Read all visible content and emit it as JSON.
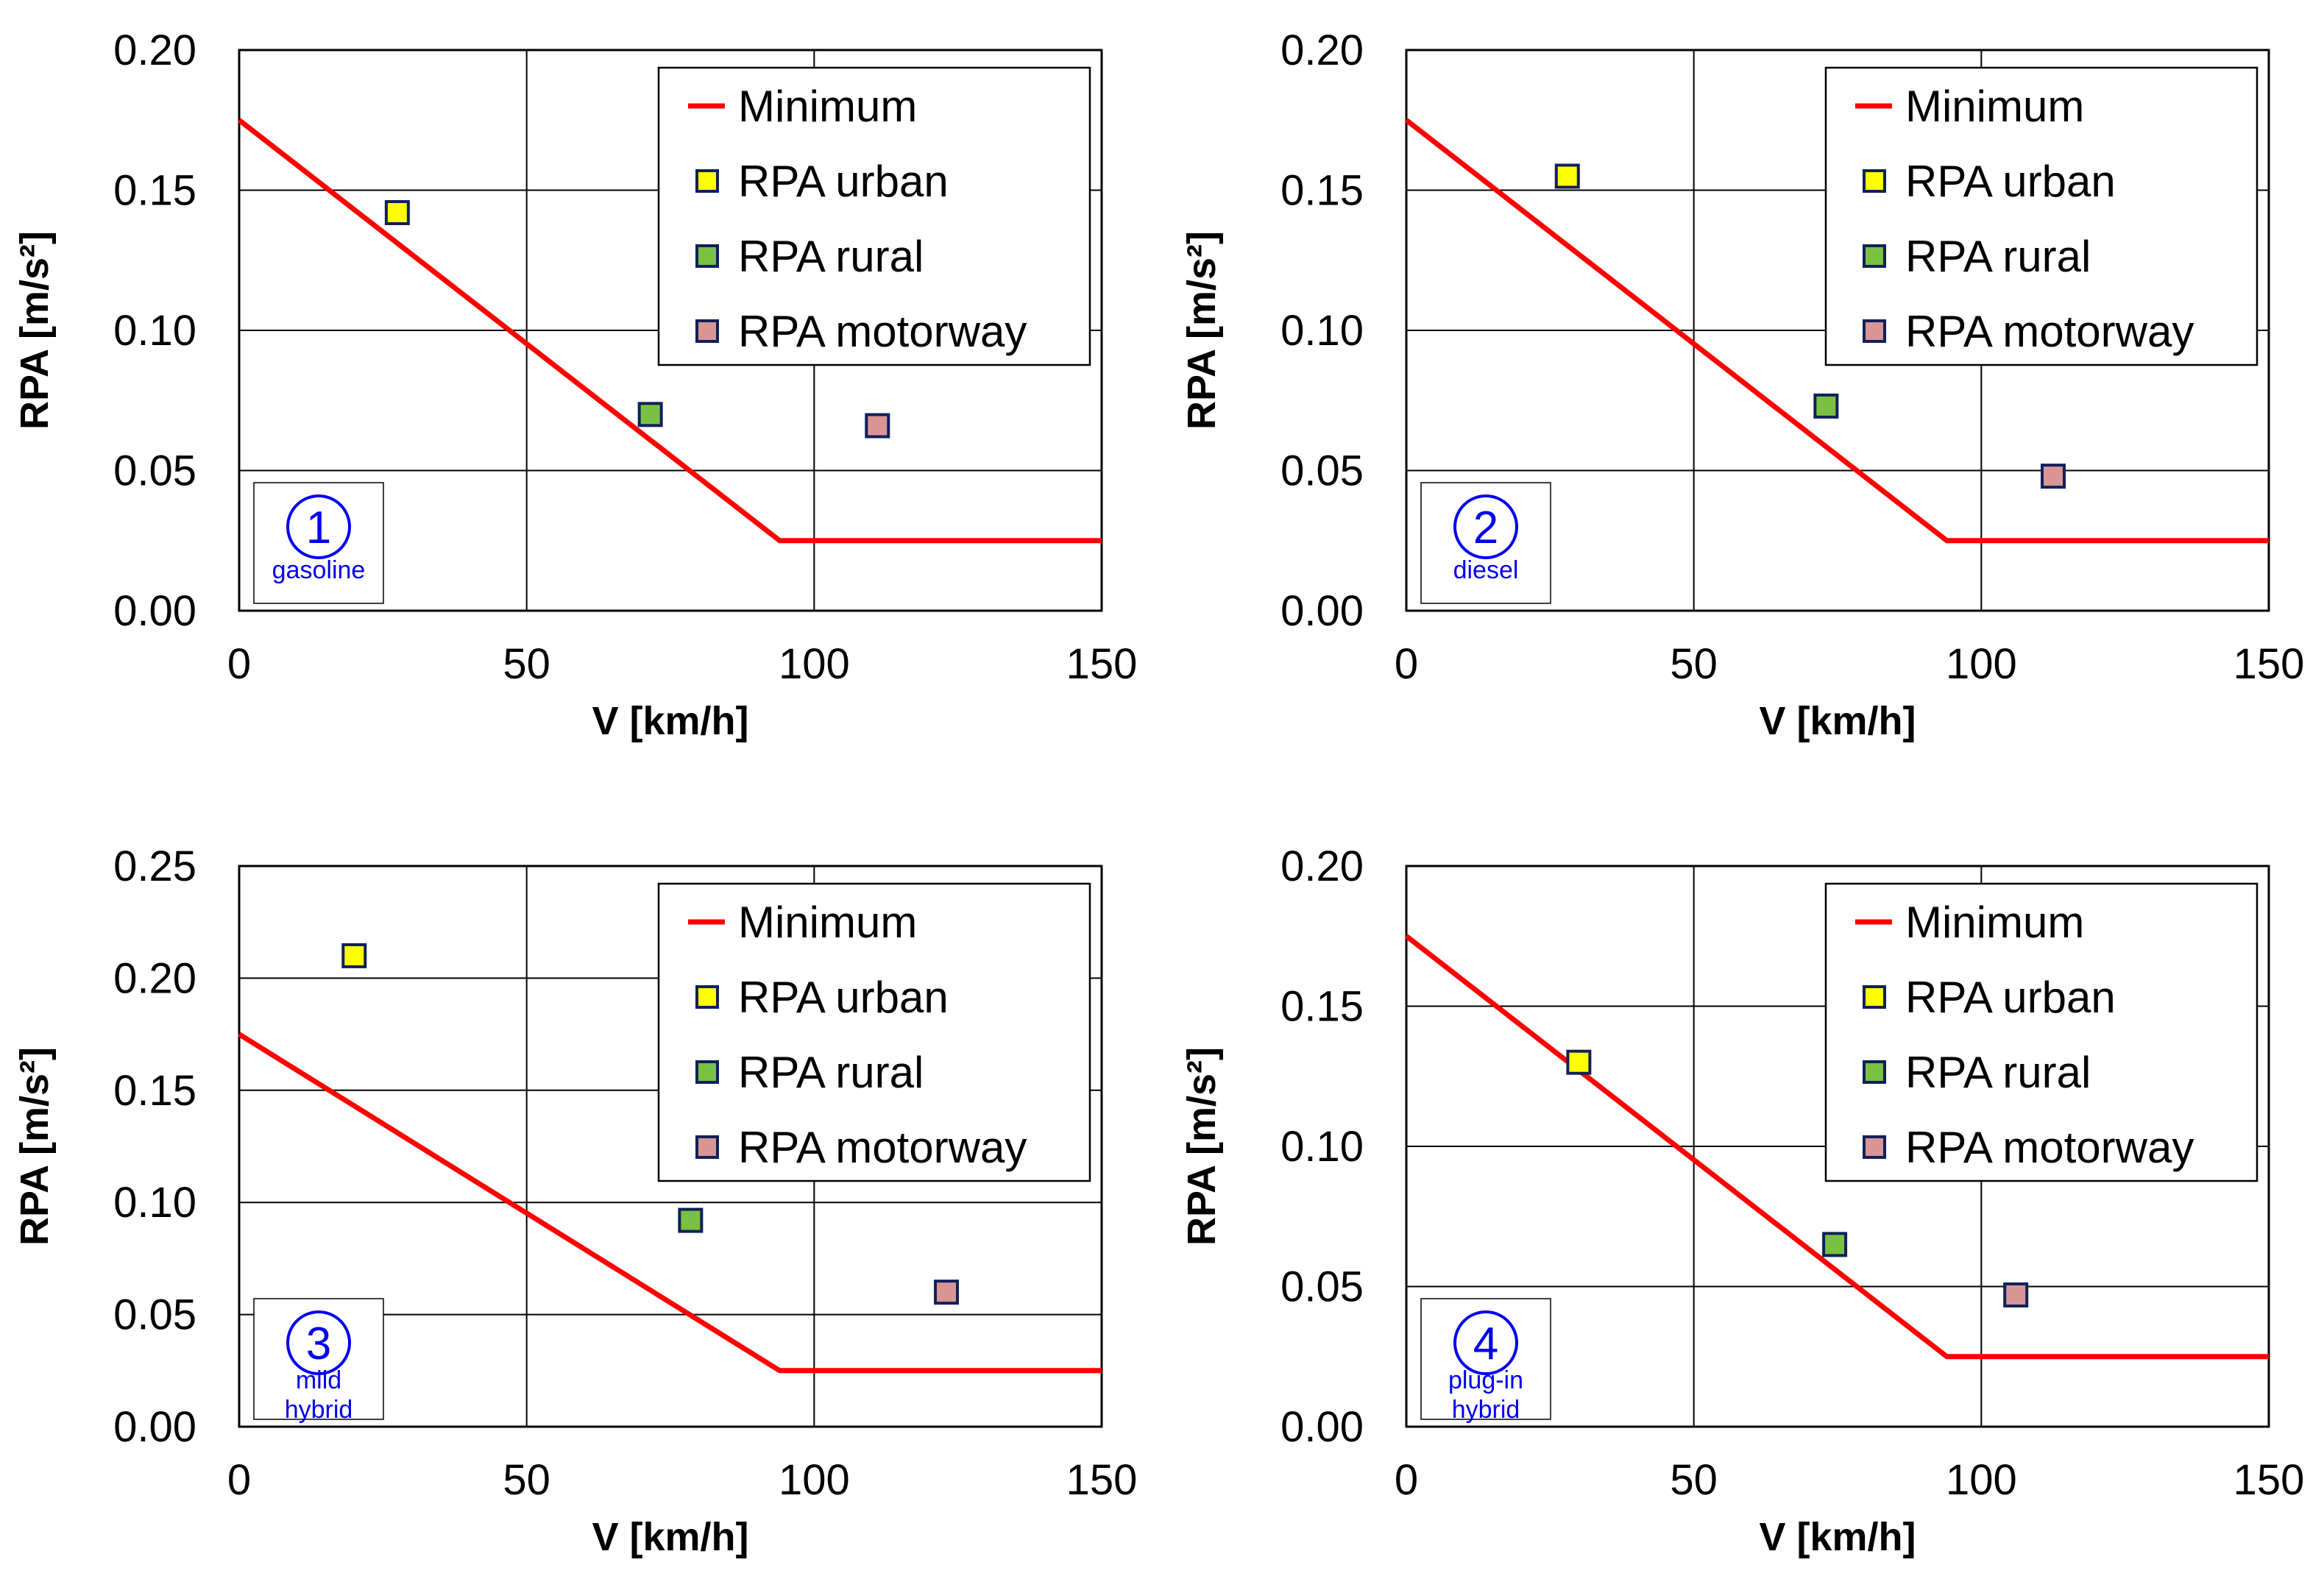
{
  "chart_data": [
    {
      "type": "scatter",
      "panel_number": "①",
      "panel_label": [
        "gasoline"
      ],
      "xlabel": "V [km/h]",
      "ylabel": "RPA [m/s²]",
      "xlim": [
        0,
        150
      ],
      "ylim": [
        0,
        0.2
      ],
      "xticks": [
        0,
        50,
        100,
        150
      ],
      "xtick_labels": [
        "0",
        "50",
        "100",
        "150"
      ],
      "yticks": [
        0,
        0.05,
        0.1,
        0.15,
        0.2
      ],
      "ytick_labels": [
        "0.00",
        "0.05",
        "0.10",
        "0.15",
        "0.20"
      ],
      "grid": true,
      "legend_position": "top-right",
      "minimum_line": {
        "name": "Minimum",
        "color": "#ff0000",
        "x": [
          0,
          94,
          150
        ],
        "y": [
          0.175,
          0.025,
          0.025
        ]
      },
      "series": [
        {
          "name": "RPA urban",
          "color": "#ffff00",
          "x": [
            27.5
          ],
          "y": [
            0.142
          ]
        },
        {
          "name": "RPA rural",
          "color": "#7ac143",
          "x": [
            71.5
          ],
          "y": [
            0.07
          ]
        },
        {
          "name": "RPA motorway",
          "color": "#d99594",
          "x": [
            111
          ],
          "y": [
            0.066
          ]
        }
      ]
    },
    {
      "type": "scatter",
      "panel_number": "②",
      "panel_label": [
        "diesel"
      ],
      "xlabel": "V [km/h]",
      "ylabel": "RPA [m/s²]",
      "xlim": [
        0,
        150
      ],
      "ylim": [
        0,
        0.2
      ],
      "xticks": [
        0,
        50,
        100,
        150
      ],
      "xtick_labels": [
        "0",
        "50",
        "100",
        "150"
      ],
      "yticks": [
        0,
        0.05,
        0.1,
        0.15,
        0.2
      ],
      "ytick_labels": [
        "0.00",
        "0.05",
        "0.10",
        "0.15",
        "0.20"
      ],
      "grid": true,
      "legend_position": "top-right",
      "minimum_line": {
        "name": "Minimum",
        "color": "#ff0000",
        "x": [
          0,
          94,
          150
        ],
        "y": [
          0.175,
          0.025,
          0.025
        ]
      },
      "series": [
        {
          "name": "RPA urban",
          "color": "#ffff00",
          "x": [
            28
          ],
          "y": [
            0.155
          ]
        },
        {
          "name": "RPA rural",
          "color": "#7ac143",
          "x": [
            73
          ],
          "y": [
            0.073
          ]
        },
        {
          "name": "RPA motorway",
          "color": "#d99594",
          "x": [
            112.5
          ],
          "y": [
            0.048
          ]
        }
      ]
    },
    {
      "type": "scatter",
      "panel_number": "③",
      "panel_label": [
        "mild",
        "hybrid"
      ],
      "xlabel": "V [km/h]",
      "ylabel": "RPA [m/s²]",
      "xlim": [
        0,
        150
      ],
      "ylim": [
        0,
        0.25
      ],
      "xticks": [
        0,
        50,
        100,
        150
      ],
      "xtick_labels": [
        "0",
        "50",
        "100",
        "150"
      ],
      "yticks": [
        0,
        0.05,
        0.1,
        0.15,
        0.2,
        0.25
      ],
      "ytick_labels": [
        "0.00",
        "0.05",
        "0.10",
        "0.15",
        "0.20",
        "0.25"
      ],
      "grid": true,
      "legend_position": "top-right",
      "minimum_line": {
        "name": "Minimum",
        "color": "#ff0000",
        "x": [
          0,
          94,
          150
        ],
        "y": [
          0.175,
          0.025,
          0.025
        ]
      },
      "series": [
        {
          "name": "RPA urban",
          "color": "#ffff00",
          "x": [
            20
          ],
          "y": [
            0.21
          ]
        },
        {
          "name": "RPA rural",
          "color": "#7ac143",
          "x": [
            78.5
          ],
          "y": [
            0.092
          ]
        },
        {
          "name": "RPA motorway",
          "color": "#d99594",
          "x": [
            123
          ],
          "y": [
            0.06
          ]
        }
      ]
    },
    {
      "type": "scatter",
      "panel_number": "④",
      "panel_label": [
        "plug-in",
        "hybrid"
      ],
      "xlabel": "V [km/h]",
      "ylabel": "RPA [m/s²]",
      "xlim": [
        0,
        150
      ],
      "ylim": [
        0,
        0.2
      ],
      "xticks": [
        0,
        50,
        100,
        150
      ],
      "xtick_labels": [
        "0",
        "50",
        "100",
        "150"
      ],
      "yticks": [
        0,
        0.05,
        0.1,
        0.15,
        0.2
      ],
      "ytick_labels": [
        "0.00",
        "0.05",
        "0.10",
        "0.15",
        "0.20"
      ],
      "grid": true,
      "legend_position": "top-right",
      "minimum_line": {
        "name": "Minimum",
        "color": "#ff0000",
        "x": [
          0,
          94,
          150
        ],
        "y": [
          0.175,
          0.025,
          0.025
        ]
      },
      "series": [
        {
          "name": "RPA urban",
          "color": "#ffff00",
          "x": [
            30
          ],
          "y": [
            0.13
          ]
        },
        {
          "name": "RPA rural",
          "color": "#7ac143",
          "x": [
            74.5
          ],
          "y": [
            0.065
          ]
        },
        {
          "name": "RPA motorway",
          "color": "#d99594",
          "x": [
            106
          ],
          "y": [
            0.047
          ]
        }
      ]
    }
  ]
}
